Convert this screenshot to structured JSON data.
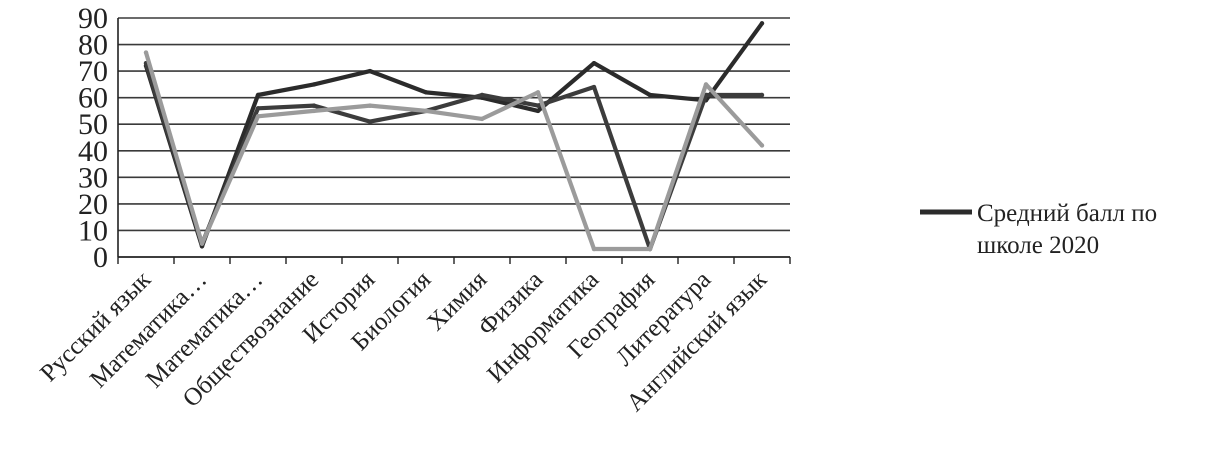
{
  "chart_data": {
    "type": "line",
    "categories": [
      "Русский язык",
      "Математика…",
      "Математика…",
      "Обществознание",
      "История",
      "Биология",
      "Химия",
      "Физика",
      "Информатика",
      "География",
      "Литература",
      "Английский язык"
    ],
    "ylim": [
      0,
      90
    ],
    "yticks": [
      "0",
      "10",
      "20",
      "30",
      "40",
      "50",
      "60",
      "70",
      "80",
      "90"
    ],
    "grid": true,
    "legend_position": "right",
    "series": [
      {
        "name": "Средний балл по школе 2020",
        "color": "#2b2b2b",
        "values": [
          72,
          4,
          61,
          65,
          70,
          62,
          60,
          55,
          73,
          61,
          59,
          88
        ]
      },
      {
        "color": "#3c3c3c",
        "values": [
          73,
          5,
          56,
          57,
          51,
          55,
          61,
          57,
          64,
          3,
          61,
          61
        ]
      },
      {
        "color": "#9b9b9b",
        "values": [
          77,
          5,
          53,
          55,
          57,
          55,
          52,
          62,
          3,
          3,
          65,
          42
        ]
      }
    ]
  }
}
